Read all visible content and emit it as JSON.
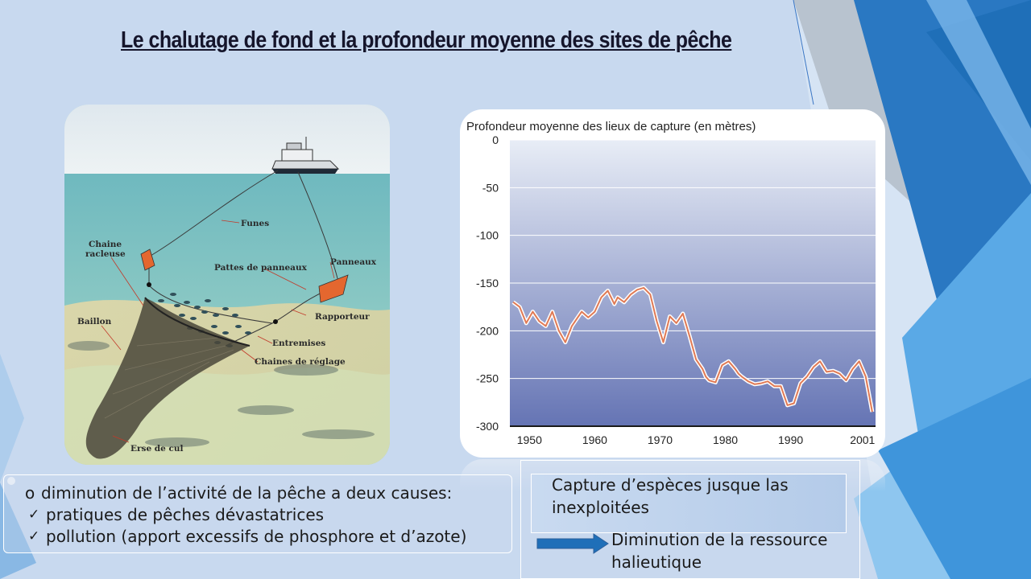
{
  "slide": {
    "title": "Le chalutage de fond et la profondeur moyenne des sites de pêche"
  },
  "trawl_diagram": {
    "labels": {
      "funes": "Funes",
      "chaine": "Chaine",
      "racleuse": "racleuse",
      "pattes": "Pattes de panneaux",
      "panneaux": "Panneaux",
      "baillon": "Baillon",
      "rapporteur": "Rapporteur",
      "entremises": "Entremises",
      "chaines_reglage": "Chaines de réglage",
      "erse": "Erse de cul"
    }
  },
  "chart_data": {
    "type": "line",
    "title": "Profondeur moyenne des lieux de capture (en mètres)",
    "xlim": [
      1947,
      2003
    ],
    "ylim": [
      -300,
      0
    ],
    "yticks": [
      0,
      -50,
      -100,
      -150,
      -200,
      -250,
      -300
    ],
    "xticks": [
      1950,
      1960,
      1970,
      1980,
      1990,
      2001
    ],
    "series": [
      {
        "x": [
          1947.5,
          1948.5,
          1949.5,
          1950.5,
          1951.5,
          1952.5,
          1953.5,
          1954.5,
          1955.5,
          1956.5,
          1957.5,
          1958,
          1959,
          1960,
          1961,
          1962,
          1963,
          1963.5,
          1964.5,
          1965.5,
          1966.5,
          1967.5,
          1968.5,
          1969.5,
          1970.5,
          1971.5,
          1972.5,
          1973.5,
          1974.5,
          1975.5,
          1976.5,
          1977,
          1977.5,
          1978.5,
          1979.5,
          1980.5,
          1981.5,
          1982,
          1982.5,
          1983.5,
          1984.5,
          1985.5,
          1986.5,
          1987.5,
          1988.5,
          1989.5,
          1990.5,
          1991.5,
          1992.5,
          1993.5,
          1994.5,
          1995.5,
          1996.5,
          1997.5,
          1998.5,
          1999.5,
          2000.5,
          2001.5,
          2002.5
        ],
        "y": [
          -170,
          -175,
          -192,
          -180,
          -190,
          -195,
          -180,
          -200,
          -212,
          -195,
          -185,
          -180,
          -186,
          -180,
          -165,
          -158,
          -172,
          -165,
          -170,
          -162,
          -157,
          -155,
          -162,
          -190,
          -212,
          -185,
          -192,
          -182,
          -205,
          -230,
          -240,
          -248,
          -252,
          -254,
          -236,
          -232,
          -240,
          -245,
          -248,
          -253,
          -256,
          -255,
          -253,
          -258,
          -258,
          -278,
          -276,
          -255,
          -248,
          -238,
          -232,
          -243,
          -242,
          -245,
          -252,
          -240,
          -232,
          -248,
          -285
        ]
      }
    ]
  },
  "left_text": {
    "line1": "diminution de l’activité de la pêche a deux causes:",
    "line2": "pratiques de pêches dévastatrices",
    "line3": "pollution (apport excessifs de phosphore et d’azote)",
    "bullet_main": "o",
    "bullet_check": "✓"
  },
  "right_text": {
    "line1": "Capture d’espèces jusque las",
    "line2": "inexploitées",
    "arrow_line1": "Diminution de la ressource",
    "arrow_line2": "halieutique"
  },
  "colors": {
    "chart_line": "#e07a55",
    "chart_plot_top": "#e8edf6",
    "chart_plot_bottom": "#6574b4",
    "arrow": "#1f6fb8"
  }
}
